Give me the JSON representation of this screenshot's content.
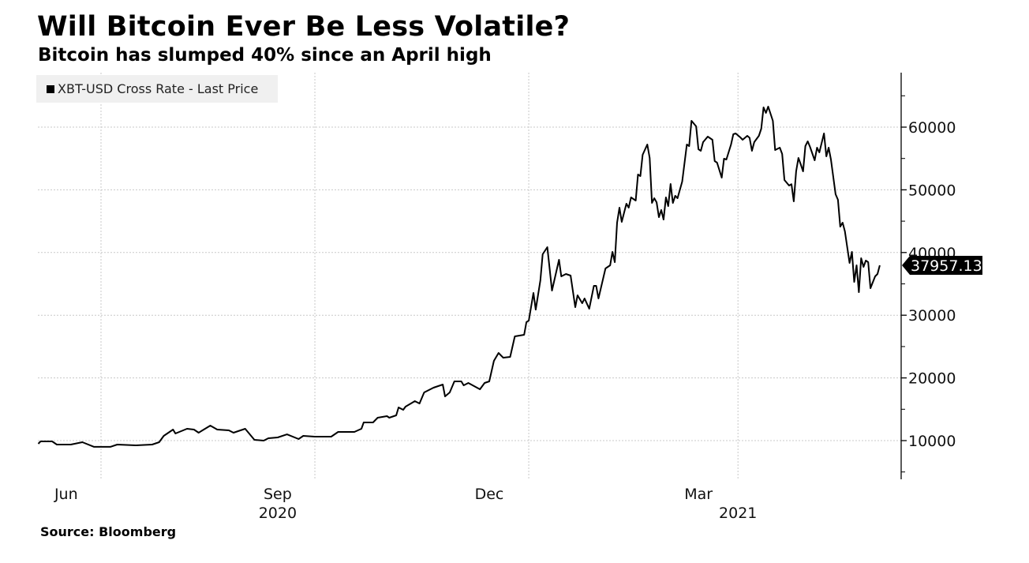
{
  "title": "Will Bitcoin Ever Be Less Volatile?",
  "subtitle": "Bitcoin has slumped 40% since an April high",
  "source": "Source: Bloomberg",
  "chart_data": {
    "type": "line",
    "title": "Will Bitcoin Ever Be Less Volatile?",
    "subtitle": "Bitcoin has slumped 40% since an April high",
    "legend": {
      "placement": "top-left",
      "entries": [
        "XBT-USD Cross Rate - Last Price"
      ]
    },
    "line_color": "#000000",
    "grid": true,
    "y_axis": {
      "side": "right",
      "ticks": [
        10000,
        20000,
        30000,
        40000,
        50000,
        60000
      ],
      "tick_labels": [
        "10000",
        "20000",
        "30000",
        "40000",
        "50000",
        "60000"
      ],
      "ylim": [
        3800,
        68700
      ]
    },
    "x_axis": {
      "xlim": [
        "2020-06-04",
        "2021-06-05"
      ],
      "gridlines": [
        "2020-07-01",
        "2020-10-01",
        "2021-01-01",
        "2021-04-01"
      ],
      "month_labels": [
        {
          "label": "Jun",
          "date": "2020-06-16"
        },
        {
          "label": "Sep",
          "date": "2020-09-15"
        },
        {
          "label": "Dec",
          "date": "2020-12-15"
        },
        {
          "label": "Mar",
          "date": "2021-03-15"
        }
      ],
      "year_labels": [
        {
          "label": "2020",
          "date": "2020-09-15"
        },
        {
          "label": "2021",
          "date": "2021-04-01"
        }
      ]
    },
    "last_price_label": "37957.13",
    "series": [
      {
        "name": "XBT-USD Cross Rate - Last Price",
        "points": [
          [
            "2020-06-04",
            9500
          ],
          [
            "2020-06-05",
            9870
          ],
          [
            "2020-06-10",
            9870
          ],
          [
            "2020-06-12",
            9370
          ],
          [
            "2020-06-18",
            9370
          ],
          [
            "2020-06-23",
            9750
          ],
          [
            "2020-06-28",
            9000
          ],
          [
            "2020-07-05",
            9000
          ],
          [
            "2020-07-08",
            9370
          ],
          [
            "2020-07-16",
            9240
          ],
          [
            "2020-07-23",
            9370
          ],
          [
            "2020-07-26",
            9750
          ],
          [
            "2020-07-28",
            10750
          ],
          [
            "2020-08-01",
            11760
          ],
          [
            "2020-08-02",
            11130
          ],
          [
            "2020-08-07",
            11890
          ],
          [
            "2020-08-10",
            11760
          ],
          [
            "2020-08-12",
            11260
          ],
          [
            "2020-08-17",
            12390
          ],
          [
            "2020-08-20",
            11760
          ],
          [
            "2020-08-25",
            11640
          ],
          [
            "2020-08-27",
            11260
          ],
          [
            "2020-09-01",
            11890
          ],
          [
            "2020-09-05",
            10130
          ],
          [
            "2020-09-09",
            10000
          ],
          [
            "2020-09-11",
            10380
          ],
          [
            "2020-09-15",
            10500
          ],
          [
            "2020-09-19",
            11000
          ],
          [
            "2020-09-24",
            10250
          ],
          [
            "2020-09-26",
            10750
          ],
          [
            "2020-10-01",
            10630
          ],
          [
            "2020-10-08",
            10630
          ],
          [
            "2020-10-11",
            11390
          ],
          [
            "2020-10-18",
            11390
          ],
          [
            "2020-10-21",
            11890
          ],
          [
            "2020-10-22",
            12900
          ],
          [
            "2020-10-26",
            12900
          ],
          [
            "2020-10-28",
            13650
          ],
          [
            "2020-11-01",
            13900
          ],
          [
            "2020-11-02",
            13650
          ],
          [
            "2020-11-05",
            14030
          ],
          [
            "2020-11-06",
            15290
          ],
          [
            "2020-11-08",
            14910
          ],
          [
            "2020-11-09",
            15420
          ],
          [
            "2020-11-13",
            16300
          ],
          [
            "2020-11-15",
            15920
          ],
          [
            "2020-11-17",
            17680
          ],
          [
            "2020-11-21",
            18440
          ],
          [
            "2020-11-23",
            18690
          ],
          [
            "2020-11-25",
            18940
          ],
          [
            "2020-11-26",
            17050
          ],
          [
            "2020-11-28",
            17680
          ],
          [
            "2020-11-30",
            19450
          ],
          [
            "2020-12-03",
            19450
          ],
          [
            "2020-12-04",
            18820
          ],
          [
            "2020-12-06",
            19190
          ],
          [
            "2020-12-11",
            18190
          ],
          [
            "2020-12-13",
            19190
          ],
          [
            "2020-12-15",
            19450
          ],
          [
            "2020-12-17",
            22720
          ],
          [
            "2020-12-19",
            23980
          ],
          [
            "2020-12-21",
            23220
          ],
          [
            "2020-12-24",
            23350
          ],
          [
            "2020-12-26",
            26620
          ],
          [
            "2020-12-30",
            26880
          ],
          [
            "2020-12-31",
            28890
          ],
          [
            "2021-01-01",
            29140
          ],
          [
            "2021-01-03",
            33550
          ],
          [
            "2021-01-04",
            30900
          ],
          [
            "2021-01-06",
            35570
          ],
          [
            "2021-01-07",
            39720
          ],
          [
            "2021-01-09",
            40860
          ],
          [
            "2021-01-11",
            33930
          ],
          [
            "2021-01-14",
            38840
          ],
          [
            "2021-01-15",
            36200
          ],
          [
            "2021-01-17",
            36570
          ],
          [
            "2021-01-19",
            36320
          ],
          [
            "2021-01-21",
            31280
          ],
          [
            "2021-01-22",
            33170
          ],
          [
            "2021-01-24",
            31910
          ],
          [
            "2021-01-25",
            32670
          ],
          [
            "2021-01-27",
            31030
          ],
          [
            "2021-01-29",
            34690
          ],
          [
            "2021-01-30",
            34690
          ],
          [
            "2021-01-31",
            32670
          ],
          [
            "2021-02-03",
            37460
          ],
          [
            "2021-02-05",
            37960
          ],
          [
            "2021-02-06",
            40100
          ],
          [
            "2021-02-07",
            38460
          ],
          [
            "2021-02-08",
            44760
          ],
          [
            "2021-02-09",
            47150
          ],
          [
            "2021-02-10",
            44890
          ],
          [
            "2021-02-12",
            47780
          ],
          [
            "2021-02-13",
            47150
          ],
          [
            "2021-02-14",
            48790
          ],
          [
            "2021-02-16",
            48290
          ],
          [
            "2021-02-17",
            52440
          ],
          [
            "2021-02-18",
            52190
          ],
          [
            "2021-02-19",
            55590
          ],
          [
            "2021-02-21",
            57230
          ],
          [
            "2021-02-22",
            55090
          ],
          [
            "2021-02-23",
            47910
          ],
          [
            "2021-02-24",
            48670
          ],
          [
            "2021-02-25",
            48000
          ],
          [
            "2021-02-26",
            45640
          ],
          [
            "2021-02-27",
            46780
          ],
          [
            "2021-02-28",
            45260
          ],
          [
            "2021-03-01",
            48790
          ],
          [
            "2021-03-02",
            47410
          ],
          [
            "2021-03-03",
            50930
          ],
          [
            "2021-03-04",
            47910
          ],
          [
            "2021-03-05",
            49040
          ],
          [
            "2021-03-06",
            48670
          ],
          [
            "2021-03-08",
            51310
          ],
          [
            "2021-03-10",
            57230
          ],
          [
            "2021-03-11",
            56980
          ],
          [
            "2021-03-12",
            61010
          ],
          [
            "2021-03-14",
            60130
          ],
          [
            "2021-03-15",
            56470
          ],
          [
            "2021-03-16",
            56220
          ],
          [
            "2021-03-17",
            57610
          ],
          [
            "2021-03-19",
            58490
          ],
          [
            "2021-03-21",
            57990
          ],
          [
            "2021-03-22",
            54590
          ],
          [
            "2021-03-23",
            54330
          ],
          [
            "2021-03-25",
            51940
          ],
          [
            "2021-03-26",
            54960
          ],
          [
            "2021-03-27",
            54840
          ],
          [
            "2021-03-29",
            57230
          ],
          [
            "2021-03-30",
            58870
          ],
          [
            "2021-03-31",
            58990
          ],
          [
            "2021-04-02",
            58360
          ],
          [
            "2021-04-03",
            57990
          ],
          [
            "2021-04-05",
            58620
          ],
          [
            "2021-04-06",
            58300
          ],
          [
            "2021-04-07",
            56220
          ],
          [
            "2021-04-08",
            57610
          ],
          [
            "2021-04-10",
            58620
          ],
          [
            "2021-04-11",
            59750
          ],
          [
            "2021-04-12",
            63150
          ],
          [
            "2021-04-13",
            62270
          ],
          [
            "2021-04-14",
            63280
          ],
          [
            "2021-04-16",
            61010
          ],
          [
            "2021-04-17",
            56350
          ],
          [
            "2021-04-19",
            56720
          ],
          [
            "2021-04-20",
            55720
          ],
          [
            "2021-04-21",
            51560
          ],
          [
            "2021-04-23",
            50680
          ],
          [
            "2021-04-24",
            50900
          ],
          [
            "2021-04-25",
            48160
          ],
          [
            "2021-04-26",
            52950
          ],
          [
            "2021-04-27",
            55090
          ],
          [
            "2021-04-28",
            54080
          ],
          [
            "2021-04-29",
            52950
          ],
          [
            "2021-04-30",
            56980
          ],
          [
            "2021-05-01",
            57730
          ],
          [
            "2021-05-02",
            56850
          ],
          [
            "2021-05-04",
            54710
          ],
          [
            "2021-05-05",
            56720
          ],
          [
            "2021-05-06",
            55970
          ],
          [
            "2021-05-08",
            58990
          ],
          [
            "2021-05-09",
            55340
          ],
          [
            "2021-05-10",
            56720
          ],
          [
            "2021-05-11",
            54830
          ],
          [
            "2021-05-13",
            49290
          ],
          [
            "2021-05-14",
            48410
          ],
          [
            "2021-05-15",
            44130
          ],
          [
            "2021-05-16",
            44760
          ],
          [
            "2021-05-17",
            43370
          ],
          [
            "2021-05-19",
            38340
          ],
          [
            "2021-05-20",
            40100
          ],
          [
            "2021-05-21",
            35310
          ],
          [
            "2021-05-22",
            37960
          ],
          [
            "2021-05-23",
            33680
          ],
          [
            "2021-05-24",
            39090
          ],
          [
            "2021-05-25",
            37710
          ],
          [
            "2021-05-26",
            38710
          ],
          [
            "2021-05-27",
            38460
          ],
          [
            "2021-05-28",
            34310
          ],
          [
            "2021-05-30",
            36200
          ],
          [
            "2021-05-31",
            36570
          ],
          [
            "2021-06-01",
            37957.13
          ]
        ]
      }
    ]
  }
}
